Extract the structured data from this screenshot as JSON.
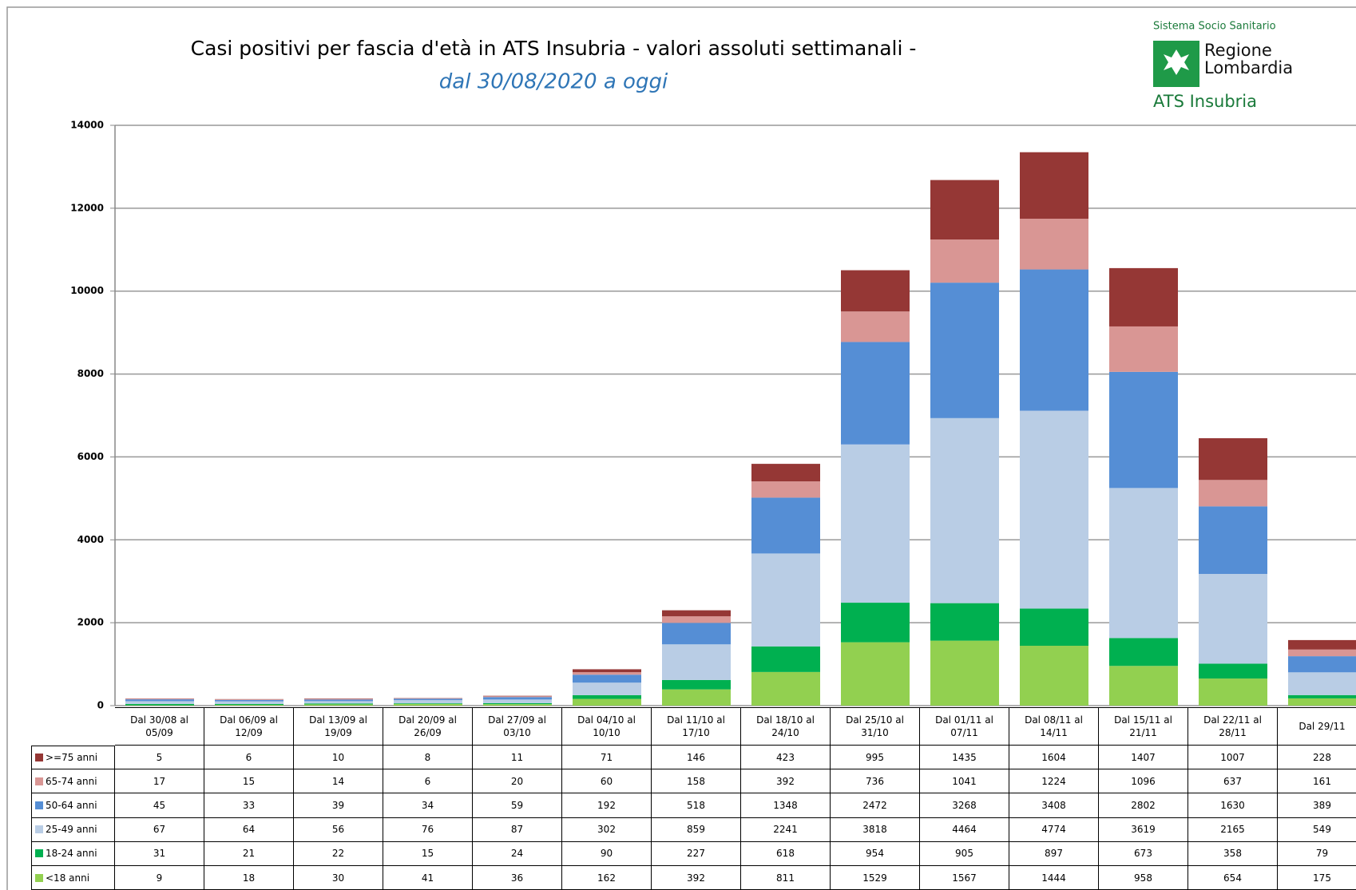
{
  "chart_data": {
    "type": "stacked_bar",
    "title": "Casi positivi per fascia d'età in ATS Insubria - valori assoluti settimanali -",
    "subtitle": "dal 30/08/2020 a oggi",
    "logo": {
      "top": "Sistema Socio Sanitario",
      "name": "Regione Lombardia",
      "bottom": "ATS Insubria"
    },
    "categories": [
      "Dal 30/08 al 05/09",
      "Dal 06/09 al 12/09",
      "Dal 13/09 al 19/09",
      "Dal 20/09 al 26/09",
      "Dal 27/09 al 03/10",
      "Dal 04/10 al 10/10",
      "Dal 11/10 al 17/10",
      "Dal 18/10 al 24/10",
      "Dal 25/10 al 31/10",
      "Dal 01/11 al 07/11",
      "Dal 08/11 al 14/11",
      "Dal 15/11 al 21/11",
      "Dal 22/11 al 28/11",
      "Dal 29/11"
    ],
    "series": [
      {
        "name": "<18 anni",
        "color": "#92d050",
        "values": [
          9,
          18,
          30,
          41,
          36,
          162,
          392,
          811,
          1529,
          1567,
          1444,
          958,
          654,
          175
        ]
      },
      {
        "name": "18-24 anni",
        "color": "#00b050",
        "values": [
          31,
          21,
          22,
          15,
          24,
          90,
          227,
          618,
          954,
          905,
          897,
          673,
          358,
          79
        ]
      },
      {
        "name": "25-49 anni",
        "color": "#b9cde5",
        "values": [
          67,
          64,
          56,
          76,
          87,
          302,
          859,
          2241,
          3818,
          4464,
          4774,
          3619,
          2165,
          549
        ]
      },
      {
        "name": "50-64 anni",
        "color": "#558ed5",
        "values": [
          45,
          33,
          39,
          34,
          59,
          192,
          518,
          1348,
          2472,
          3268,
          3408,
          2802,
          1630,
          389
        ]
      },
      {
        "name": "65-74 anni",
        "color": "#d99694",
        "values": [
          17,
          15,
          14,
          6,
          20,
          60,
          158,
          392,
          736,
          1041,
          1224,
          1096,
          637,
          161
        ]
      },
      {
        "name": ">=75 anni",
        "color": "#953735",
        "values": [
          5,
          6,
          10,
          8,
          11,
          71,
          146,
          423,
          995,
          1435,
          1604,
          1407,
          1007,
          228
        ]
      }
    ],
    "ylim": [
      0,
      14000
    ],
    "yticks": [
      0,
      2000,
      4000,
      6000,
      8000,
      10000,
      12000,
      14000
    ],
    "grid": true
  }
}
